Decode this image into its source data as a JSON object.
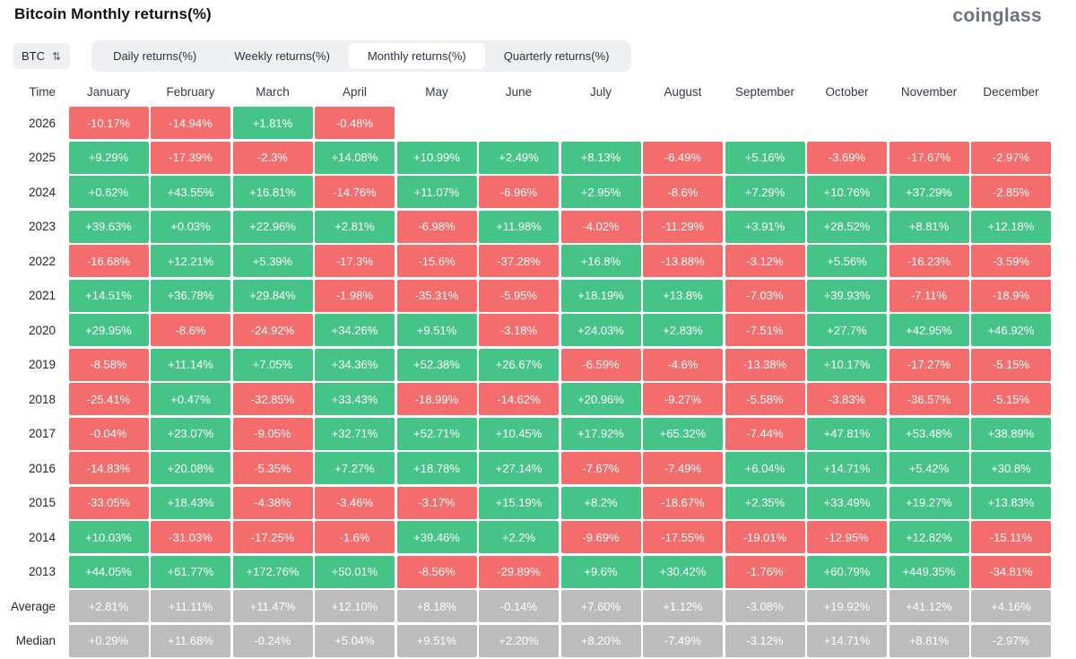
{
  "header": {
    "title": "Bitcoin Monthly returns(%)",
    "logo": "coinglass"
  },
  "toolbar": {
    "symbol": "BTC",
    "tabs": [
      {
        "label": "Daily returns(%)",
        "active": false
      },
      {
        "label": "Weekly returns(%)",
        "active": false
      },
      {
        "label": "Monthly returns(%)",
        "active": true
      },
      {
        "label": "Quarterly returns(%)",
        "active": false
      }
    ]
  },
  "icons": {
    "sort": "⇅"
  },
  "colors": {
    "positive": "#46c387",
    "negative": "#f56c6c",
    "summary": "#bcbcbc"
  },
  "table": {
    "time_label": "Time",
    "months": [
      "January",
      "February",
      "March",
      "April",
      "May",
      "June",
      "July",
      "August",
      "September",
      "October",
      "November",
      "December"
    ],
    "rows": [
      {
        "label": "2026",
        "type": "year",
        "values": [
          "-10.17%",
          "-14.94%",
          "+1.81%",
          "-0.48%",
          "",
          "",
          "",
          "",
          "",
          "",
          "",
          ""
        ]
      },
      {
        "label": "2025",
        "type": "year",
        "values": [
          "+9.29%",
          "-17.39%",
          "-2.3%",
          "+14.08%",
          "+10.99%",
          "+2.49%",
          "+8.13%",
          "-6.49%",
          "+5.16%",
          "-3.69%",
          "-17.67%",
          "-2.97%"
        ]
      },
      {
        "label": "2024",
        "type": "year",
        "values": [
          "+0.62%",
          "+43.55%",
          "+16.81%",
          "-14.76%",
          "+11.07%",
          "-6.96%",
          "+2.95%",
          "-8.6%",
          "+7.29%",
          "+10.76%",
          "+37.29%",
          "-2.85%"
        ]
      },
      {
        "label": "2023",
        "type": "year",
        "values": [
          "+39.63%",
          "+0.03%",
          "+22.96%",
          "+2.81%",
          "-6.98%",
          "+11.98%",
          "-4.02%",
          "-11.29%",
          "+3.91%",
          "+28.52%",
          "+8.81%",
          "+12.18%"
        ]
      },
      {
        "label": "2022",
        "type": "year",
        "values": [
          "-16.68%",
          "+12.21%",
          "+5.39%",
          "-17.3%",
          "-15.6%",
          "-37.28%",
          "+16.8%",
          "-13.88%",
          "-3.12%",
          "+5.56%",
          "-16.23%",
          "-3.59%"
        ]
      },
      {
        "label": "2021",
        "type": "year",
        "values": [
          "+14.51%",
          "+36.78%",
          "+29.84%",
          "-1.98%",
          "-35.31%",
          "-5.95%",
          "+18.19%",
          "+13.8%",
          "-7.03%",
          "+39.93%",
          "-7.11%",
          "-18.9%"
        ]
      },
      {
        "label": "2020",
        "type": "year",
        "values": [
          "+29.95%",
          "-8.6%",
          "-24.92%",
          "+34.26%",
          "+9.51%",
          "-3.18%",
          "+24.03%",
          "+2.83%",
          "-7.51%",
          "+27.7%",
          "+42.95%",
          "+46.92%"
        ]
      },
      {
        "label": "2019",
        "type": "year",
        "values": [
          "-8.58%",
          "+11.14%",
          "+7.05%",
          "+34.36%",
          "+52.38%",
          "+26.67%",
          "-6.59%",
          "-4.6%",
          "-13.38%",
          "+10.17%",
          "-17.27%",
          "-5.15%"
        ]
      },
      {
        "label": "2018",
        "type": "year",
        "values": [
          "-25.41%",
          "+0.47%",
          "-32.85%",
          "+33.43%",
          "-18.99%",
          "-14.62%",
          "+20.96%",
          "-9.27%",
          "-5.58%",
          "-3.83%",
          "-36.57%",
          "-5.15%"
        ]
      },
      {
        "label": "2017",
        "type": "year",
        "values": [
          "-0.04%",
          "+23.07%",
          "-9.05%",
          "+32.71%",
          "+52.71%",
          "+10.45%",
          "+17.92%",
          "+65.32%",
          "-7.44%",
          "+47.81%",
          "+53.48%",
          "+38.89%"
        ]
      },
      {
        "label": "2016",
        "type": "year",
        "values": [
          "-14.83%",
          "+20.08%",
          "-5.35%",
          "+7.27%",
          "+18.78%",
          "+27.14%",
          "-7.67%",
          "-7.49%",
          "+6.04%",
          "+14.71%",
          "+5.42%",
          "+30.8%"
        ]
      },
      {
        "label": "2015",
        "type": "year",
        "values": [
          "-33.05%",
          "+18.43%",
          "-4.38%",
          "-3.46%",
          "-3.17%",
          "+15.19%",
          "+8.2%",
          "-18.67%",
          "+2.35%",
          "+33.49%",
          "+19.27%",
          "+13.83%"
        ]
      },
      {
        "label": "2014",
        "type": "year",
        "values": [
          "+10.03%",
          "-31.03%",
          "-17.25%",
          "-1.6%",
          "+39.46%",
          "+2.2%",
          "-9.69%",
          "-17.55%",
          "-19.01%",
          "-12.95%",
          "+12.82%",
          "-15.11%"
        ]
      },
      {
        "label": "2013",
        "type": "year",
        "values": [
          "+44.05%",
          "+61.77%",
          "+172.76%",
          "+50.01%",
          "-8.56%",
          "-29.89%",
          "+9.6%",
          "+30.42%",
          "-1.76%",
          "+60.79%",
          "+449.35%",
          "-34.81%"
        ]
      },
      {
        "label": "Average",
        "type": "summary",
        "values": [
          "+2.81%",
          "+11.11%",
          "+11.47%",
          "+12.10%",
          "+8.18%",
          "-0.14%",
          "+7.60%",
          "+1.12%",
          "-3.08%",
          "+19.92%",
          "+41.12%",
          "+4.16%"
        ]
      },
      {
        "label": "Median",
        "type": "summary",
        "values": [
          "+0.29%",
          "+11.68%",
          "-0.24%",
          "+5.04%",
          "+9.51%",
          "+2.20%",
          "+8.20%",
          "-7.49%",
          "-3.12%",
          "+14.71%",
          "+8.81%",
          "-2.97%"
        ]
      }
    ]
  }
}
